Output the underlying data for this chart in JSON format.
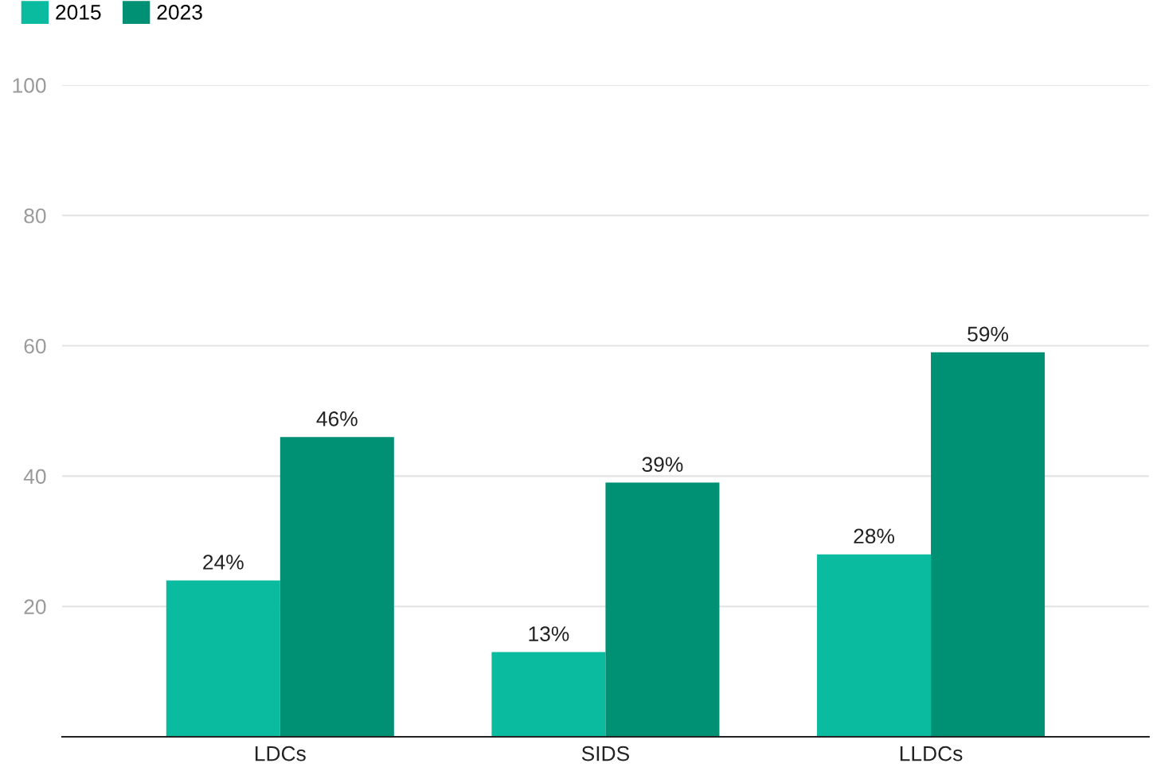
{
  "chart_data": {
    "type": "bar",
    "categories": [
      "LDCs",
      "SIDS",
      "LLDCs"
    ],
    "series": [
      {
        "name": "2015",
        "color": "#0bbb9f",
        "values": [
          24,
          13,
          28
        ],
        "value_labels": [
          "24%",
          "13%",
          "28%"
        ]
      },
      {
        "name": "2023",
        "color": "#009175",
        "values": [
          46,
          39,
          59
        ],
        "value_labels": [
          "46%",
          "39%",
          "59%"
        ]
      }
    ],
    "ylim": [
      0,
      100
    ],
    "yticks": [
      20,
      40,
      60,
      80,
      100
    ],
    "grid": "y",
    "legend": "top left"
  }
}
